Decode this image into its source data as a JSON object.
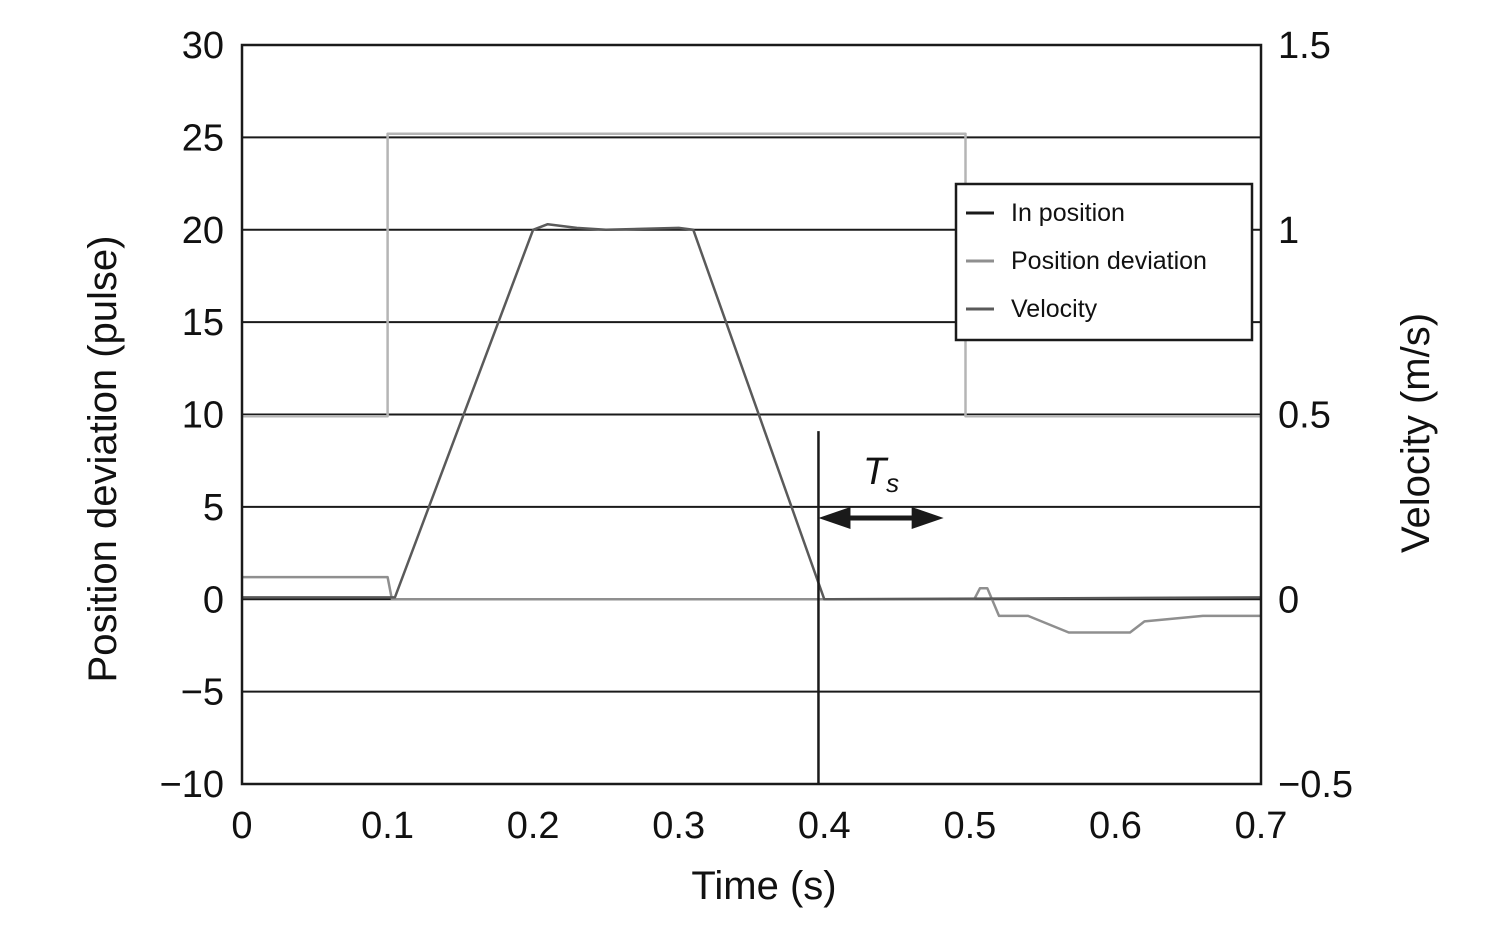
{
  "chart_data": {
    "type": "line",
    "title": "",
    "xlabel": "Time (s)",
    "ylabel": "Position deviation (pulse)",
    "y2label": "Velocity (m/s)",
    "xlim": [
      0,
      0.7
    ],
    "ylim": [
      -10,
      30
    ],
    "y2lim": [
      -0.5,
      1.5
    ],
    "x_ticks": [
      0,
      0.1,
      0.2,
      0.3,
      0.4,
      0.5,
      0.6,
      0.7
    ],
    "x_tick_labels": [
      "0",
      "0.1",
      "0.2",
      "0.3",
      "0.4",
      "0.5",
      "0.6",
      "0.7"
    ],
    "y_ticks": [
      30,
      25,
      20,
      15,
      10,
      5,
      0,
      -5,
      -10
    ],
    "y_tick_labels": [
      "30",
      "25",
      "20",
      "15",
      "10",
      "5",
      "0",
      "−5",
      "−10"
    ],
    "y2_ticks": [
      1.5,
      1,
      0.5,
      0,
      -0.5
    ],
    "y2_tick_labels": [
      "1.5",
      "1",
      "0.5",
      "0",
      "−0.5"
    ],
    "grid": "horizontal",
    "legend_position": "top-right",
    "series": [
      {
        "name": "In position",
        "axis": "left",
        "color": "#b5b5b5",
        "x": [
          0,
          0.1,
          0.1,
          0.497,
          0.497,
          0.7
        ],
        "y": [
          9.9,
          9.9,
          25.2,
          25.2,
          9.9,
          9.9
        ]
      },
      {
        "name": "Position deviation",
        "axis": "left",
        "color": "#8f8f8f",
        "x": [
          0,
          0.1,
          0.103,
          0.47,
          0.48,
          0.49,
          0.495,
          0.5,
          0.503,
          0.507,
          0.512,
          0.52,
          0.54,
          0.568,
          0.575,
          0.61,
          0.62,
          0.66,
          0.7
        ],
        "y": [
          1.2,
          1.2,
          0,
          0,
          0,
          0,
          0,
          0,
          0,
          0.6,
          0.6,
          -0.9,
          -0.9,
          -1.8,
          -1.8,
          -1.8,
          -1.2,
          -0.9,
          -0.9
        ]
      },
      {
        "name": "Velocity",
        "axis": "right",
        "color": "#5a5a5a",
        "x": [
          0,
          0.105,
          0.2,
          0.21,
          0.23,
          0.25,
          0.3,
          0.31,
          0.4,
          0.405,
          0.7
        ],
        "y": [
          0.005,
          0.005,
          1.0,
          1.015,
          1.005,
          1.0,
          1.005,
          1.0,
          0.0,
          0.0,
          0.005
        ]
      }
    ],
    "annotations": {
      "vline_x": 0.396,
      "vline_top_y": 9.1,
      "ts_label_main": "T",
      "ts_label_sub": "s",
      "arrow_from_x": 0.396,
      "arrow_to_x": 0.482,
      "arrow_y": 4.4
    }
  }
}
